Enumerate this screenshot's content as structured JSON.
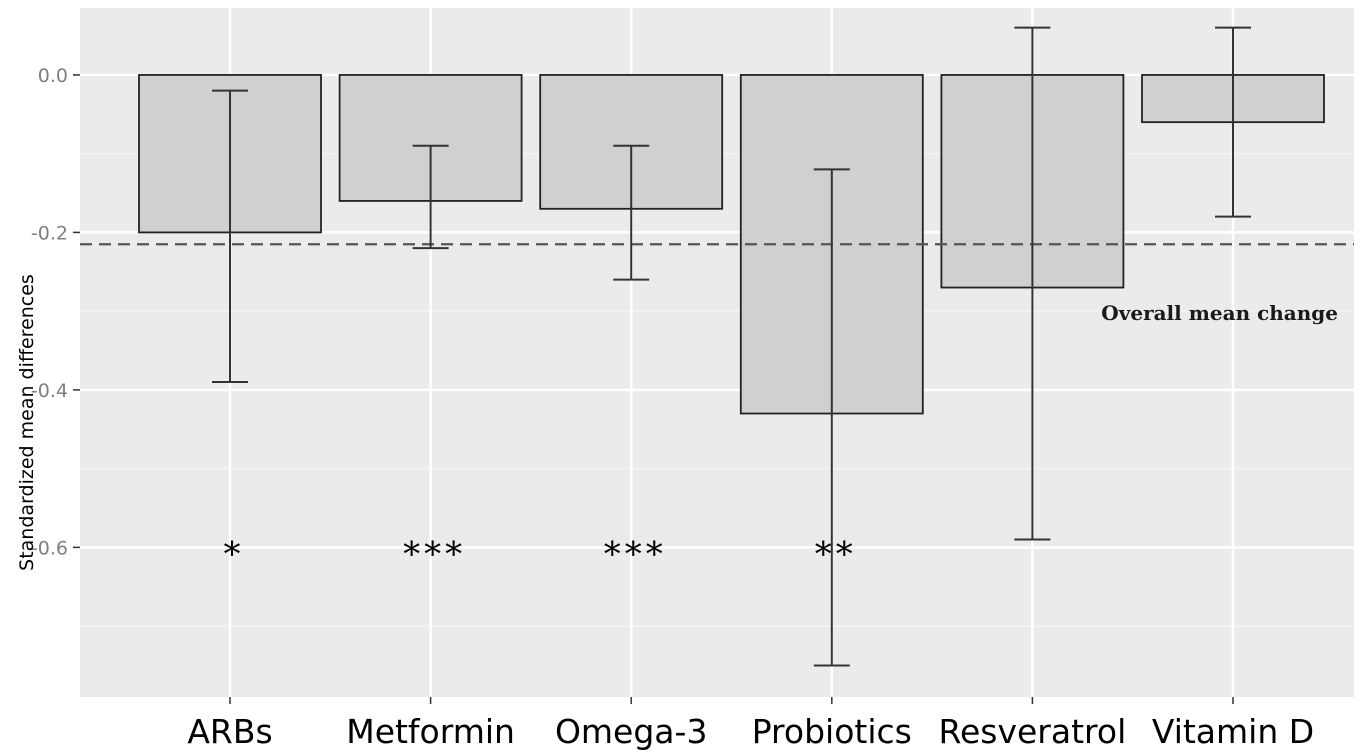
{
  "chart_data": {
    "type": "bar",
    "title": "",
    "xlabel": "",
    "ylabel": "Standardized mean differences",
    "categories": [
      "ARBs",
      "Metformin",
      "Omega-3",
      "Probiotics",
      "Resveratrol",
      "Vitamin D"
    ],
    "series": [
      {
        "values": [
          -0.2,
          -0.16,
          -0.17,
          -0.43,
          -0.27,
          -0.06
        ],
        "error_low": [
          -0.39,
          -0.22,
          -0.26,
          -0.75,
          -0.59,
          -0.18
        ],
        "error_high": [
          -0.02,
          -0.09,
          -0.09,
          -0.12,
          0.06,
          0.06
        ]
      }
    ],
    "significance": [
      "*",
      "***",
      "***",
      "**",
      "",
      ""
    ],
    "significance_y": -0.6,
    "reference_line": {
      "value": -0.215,
      "label": "Overall mean change",
      "style": "dashed"
    },
    "ylim": [
      -0.79,
      0.085
    ],
    "yticks": [
      0.0,
      -0.2,
      -0.4,
      -0.6
    ],
    "ytick_labels": [
      "0.0",
      "-0.2",
      "-0.4",
      "-0.6"
    ],
    "grid": true,
    "colors": {
      "panel_background": "#ebebeb",
      "grid_major": "#ffffff",
      "grid_minor": "#f4f4f4",
      "bar_fill": "#d0d0d0",
      "bar_outline": "#222222",
      "error_bar": "#333333",
      "reference_line": "#555555"
    }
  }
}
